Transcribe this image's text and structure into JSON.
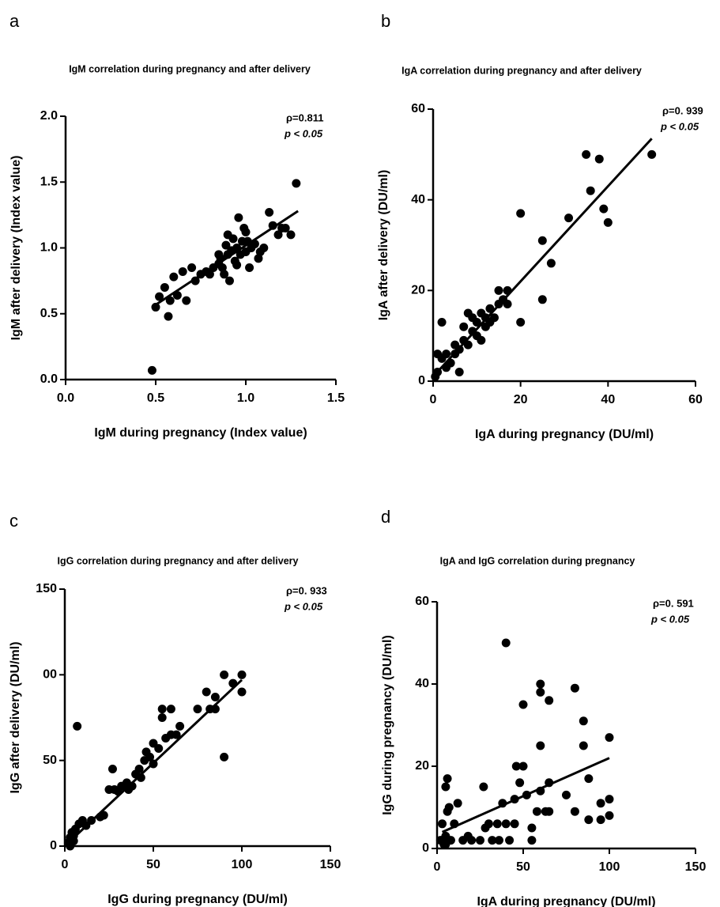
{
  "chart_data": [
    {
      "type": "scatter",
      "panel_label": "a",
      "title": "IgM correlation during pregnancy and after delivery",
      "x_label": "IgM during pregnancy (Index value)",
      "y_label": "IgM after delivery (Index value)",
      "annotation": [
        "ρ=0.811",
        "p < 0.05"
      ],
      "color": "#000000",
      "xlim": [
        0,
        1.5
      ],
      "xticks": [
        {
          "value": 0,
          "label": "0.0"
        },
        0.5,
        {
          "value": 1,
          "label": "1.0"
        },
        1.5
      ],
      "ylim": [
        0,
        2
      ],
      "yticks": [
        {
          "value": 0,
          "label": "0.0"
        },
        0.5,
        {
          "value": 1,
          "label": "1.0"
        },
        1.5,
        {
          "value": 2,
          "label": "2.0"
        }
      ],
      "x": [
        0.48,
        0.5,
        0.52,
        0.55,
        0.57,
        0.58,
        0.6,
        0.62,
        0.65,
        0.67,
        0.7,
        0.72,
        0.75,
        0.78,
        0.8,
        0.82,
        0.85,
        0.86,
        0.87,
        0.88,
        0.89,
        0.9,
        0.91,
        0.92,
        0.93,
        0.94,
        0.95,
        0.96,
        0.97,
        0.98,
        0.99,
        1.0,
        1.01,
        1.02,
        1.03,
        1.05,
        1.07,
        1.08,
        1.1,
        1.13,
        1.15,
        1.18,
        1.2,
        1.22,
        1.25,
        1.28,
        0.9,
        0.85,
        0.95,
        1.0
      ],
      "values": [
        0.07,
        0.55,
        0.63,
        0.7,
        0.48,
        0.6,
        0.78,
        0.64,
        0.82,
        0.6,
        0.85,
        0.75,
        0.8,
        0.82,
        0.8,
        0.85,
        0.88,
        0.92,
        0.85,
        0.8,
        1.02,
        0.95,
        0.75,
        0.98,
        1.07,
        0.9,
        1.0,
        1.23,
        0.95,
        1.05,
        1.15,
        0.97,
        1.05,
        0.85,
        1.0,
        1.03,
        0.92,
        0.97,
        1.0,
        1.27,
        1.17,
        1.1,
        1.15,
        1.15,
        1.1,
        1.49,
        1.1,
        0.95,
        0.87,
        1.12
      ],
      "trendline": {
        "x": [
          0.48,
          1.29
        ],
        "y": [
          0.55,
          1.28
        ]
      }
    },
    {
      "type": "scatter",
      "panel_label": "b",
      "title": "IgA correlation during pregnancy and after delivery",
      "x_label": "IgA during pregnancy (DU/ml)",
      "y_label": "IgA after delivery (DU/ml)",
      "annotation": [
        "ρ=0. 939",
        "p < 0.05"
      ],
      "color": "#000000",
      "xlim": [
        0,
        60
      ],
      "xticks": [
        0,
        20,
        40,
        60
      ],
      "ylim": [
        0,
        60
      ],
      "yticks": [
        0,
        20,
        40,
        60
      ],
      "x": [
        0.5,
        1,
        1,
        2,
        2,
        3,
        3,
        5,
        5,
        6,
        6,
        7,
        7,
        8,
        8,
        9,
        10,
        10,
        11,
        12,
        12,
        13,
        14,
        15,
        15,
        16,
        17,
        17,
        20,
        20,
        25,
        25,
        27,
        31,
        35,
        36,
        38,
        39,
        40,
        50,
        4,
        9,
        11,
        13
      ],
      "values": [
        1,
        2,
        6,
        5,
        13,
        3,
        6,
        6,
        8,
        2,
        7,
        9,
        12,
        8,
        15,
        11,
        10,
        13,
        15,
        12,
        14,
        16,
        14,
        17,
        20,
        18,
        20,
        17,
        37,
        13,
        31,
        18,
        26,
        36,
        50,
        42,
        49,
        38,
        35,
        50,
        4,
        14,
        9,
        13
      ],
      "trendline": {
        "x": [
          0,
          50
        ],
        "y": [
          1,
          53.5
        ]
      }
    },
    {
      "type": "scatter",
      "panel_label": "c",
      "title": "IgG correlation during pregnancy and after delivery",
      "x_label": "IgG during pregnancy (DU/ml)",
      "y_label": "IgG after delivery (DU/ml)",
      "annotation": [
        "ρ=0. 933",
        "p < 0.05"
      ],
      "color": "#000000",
      "xlim": [
        0,
        150
      ],
      "xticks": [
        0,
        50,
        100,
        150
      ],
      "ylim": [
        0,
        150
      ],
      "yticks": [
        0,
        50,
        {
          "value": 100,
          "label": "00"
        },
        150
      ],
      "x": [
        2,
        3,
        4,
        5,
        6,
        7,
        8,
        10,
        12,
        15,
        20,
        22,
        25,
        27,
        28,
        30,
        32,
        35,
        36,
        38,
        40,
        42,
        43,
        45,
        46,
        48,
        50,
        50,
        53,
        55,
        55,
        57,
        60,
        60,
        63,
        65,
        75,
        80,
        82,
        85,
        85,
        90,
        90,
        95,
        100,
        100,
        3,
        5
      ],
      "values": [
        2,
        5,
        8,
        3,
        10,
        70,
        13,
        15,
        12,
        15,
        17,
        18,
        33,
        45,
        33,
        32,
        35,
        37,
        33,
        35,
        42,
        45,
        40,
        50,
        55,
        52,
        48,
        60,
        57,
        75,
        80,
        63,
        80,
        65,
        65,
        70,
        80,
        90,
        80,
        87,
        80,
        52,
        100,
        95,
        100,
        90,
        0,
        6
      ],
      "trendline": {
        "x": [
          1,
          100
        ],
        "y": [
          1,
          97
        ]
      }
    },
    {
      "type": "scatter",
      "panel_label": "d",
      "title": "IgA and IgG correlation during pregnancy",
      "x_label": "IgA during pregnancy (DU/ml)",
      "y_label": "IgG during  pregnancy (DU/ml)",
      "annotation": [
        "ρ=0. 591",
        "p < 0.05"
      ],
      "color": "#000000",
      "xlim": [
        0,
        150
      ],
      "xticks": [
        0,
        50,
        100,
        150
      ],
      "ylim": [
        0,
        60
      ],
      "yticks": [
        0,
        20,
        40,
        60
      ],
      "x": [
        2,
        3,
        4,
        5,
        6,
        6,
        7,
        5,
        8,
        10,
        12,
        15,
        18,
        20,
        25,
        27,
        28,
        30,
        32,
        35,
        36,
        38,
        40,
        40,
        42,
        45,
        45,
        46,
        48,
        50,
        50,
        52,
        55,
        55,
        58,
        60,
        60,
        60,
        60,
        63,
        65,
        65,
        65,
        75,
        80,
        80,
        85,
        85,
        88,
        88,
        95,
        95,
        100,
        100,
        100,
        5,
        3
      ],
      "values": [
        2,
        6,
        1,
        15,
        17,
        9,
        10,
        3,
        2,
        6,
        11,
        2,
        3,
        2,
        2,
        15,
        5,
        6,
        2,
        6,
        2,
        11,
        50,
        6,
        2,
        12,
        6,
        20,
        16,
        20,
        35,
        13,
        2,
        5,
        9,
        38,
        40,
        25,
        14,
        9,
        36,
        16,
        9,
        13,
        39,
        9,
        25,
        31,
        7,
        17,
        11,
        7,
        27,
        12,
        8,
        1,
        2
      ],
      "trendline": {
        "x": [
          3,
          100
        ],
        "y": [
          4,
          22
        ]
      }
    }
  ]
}
